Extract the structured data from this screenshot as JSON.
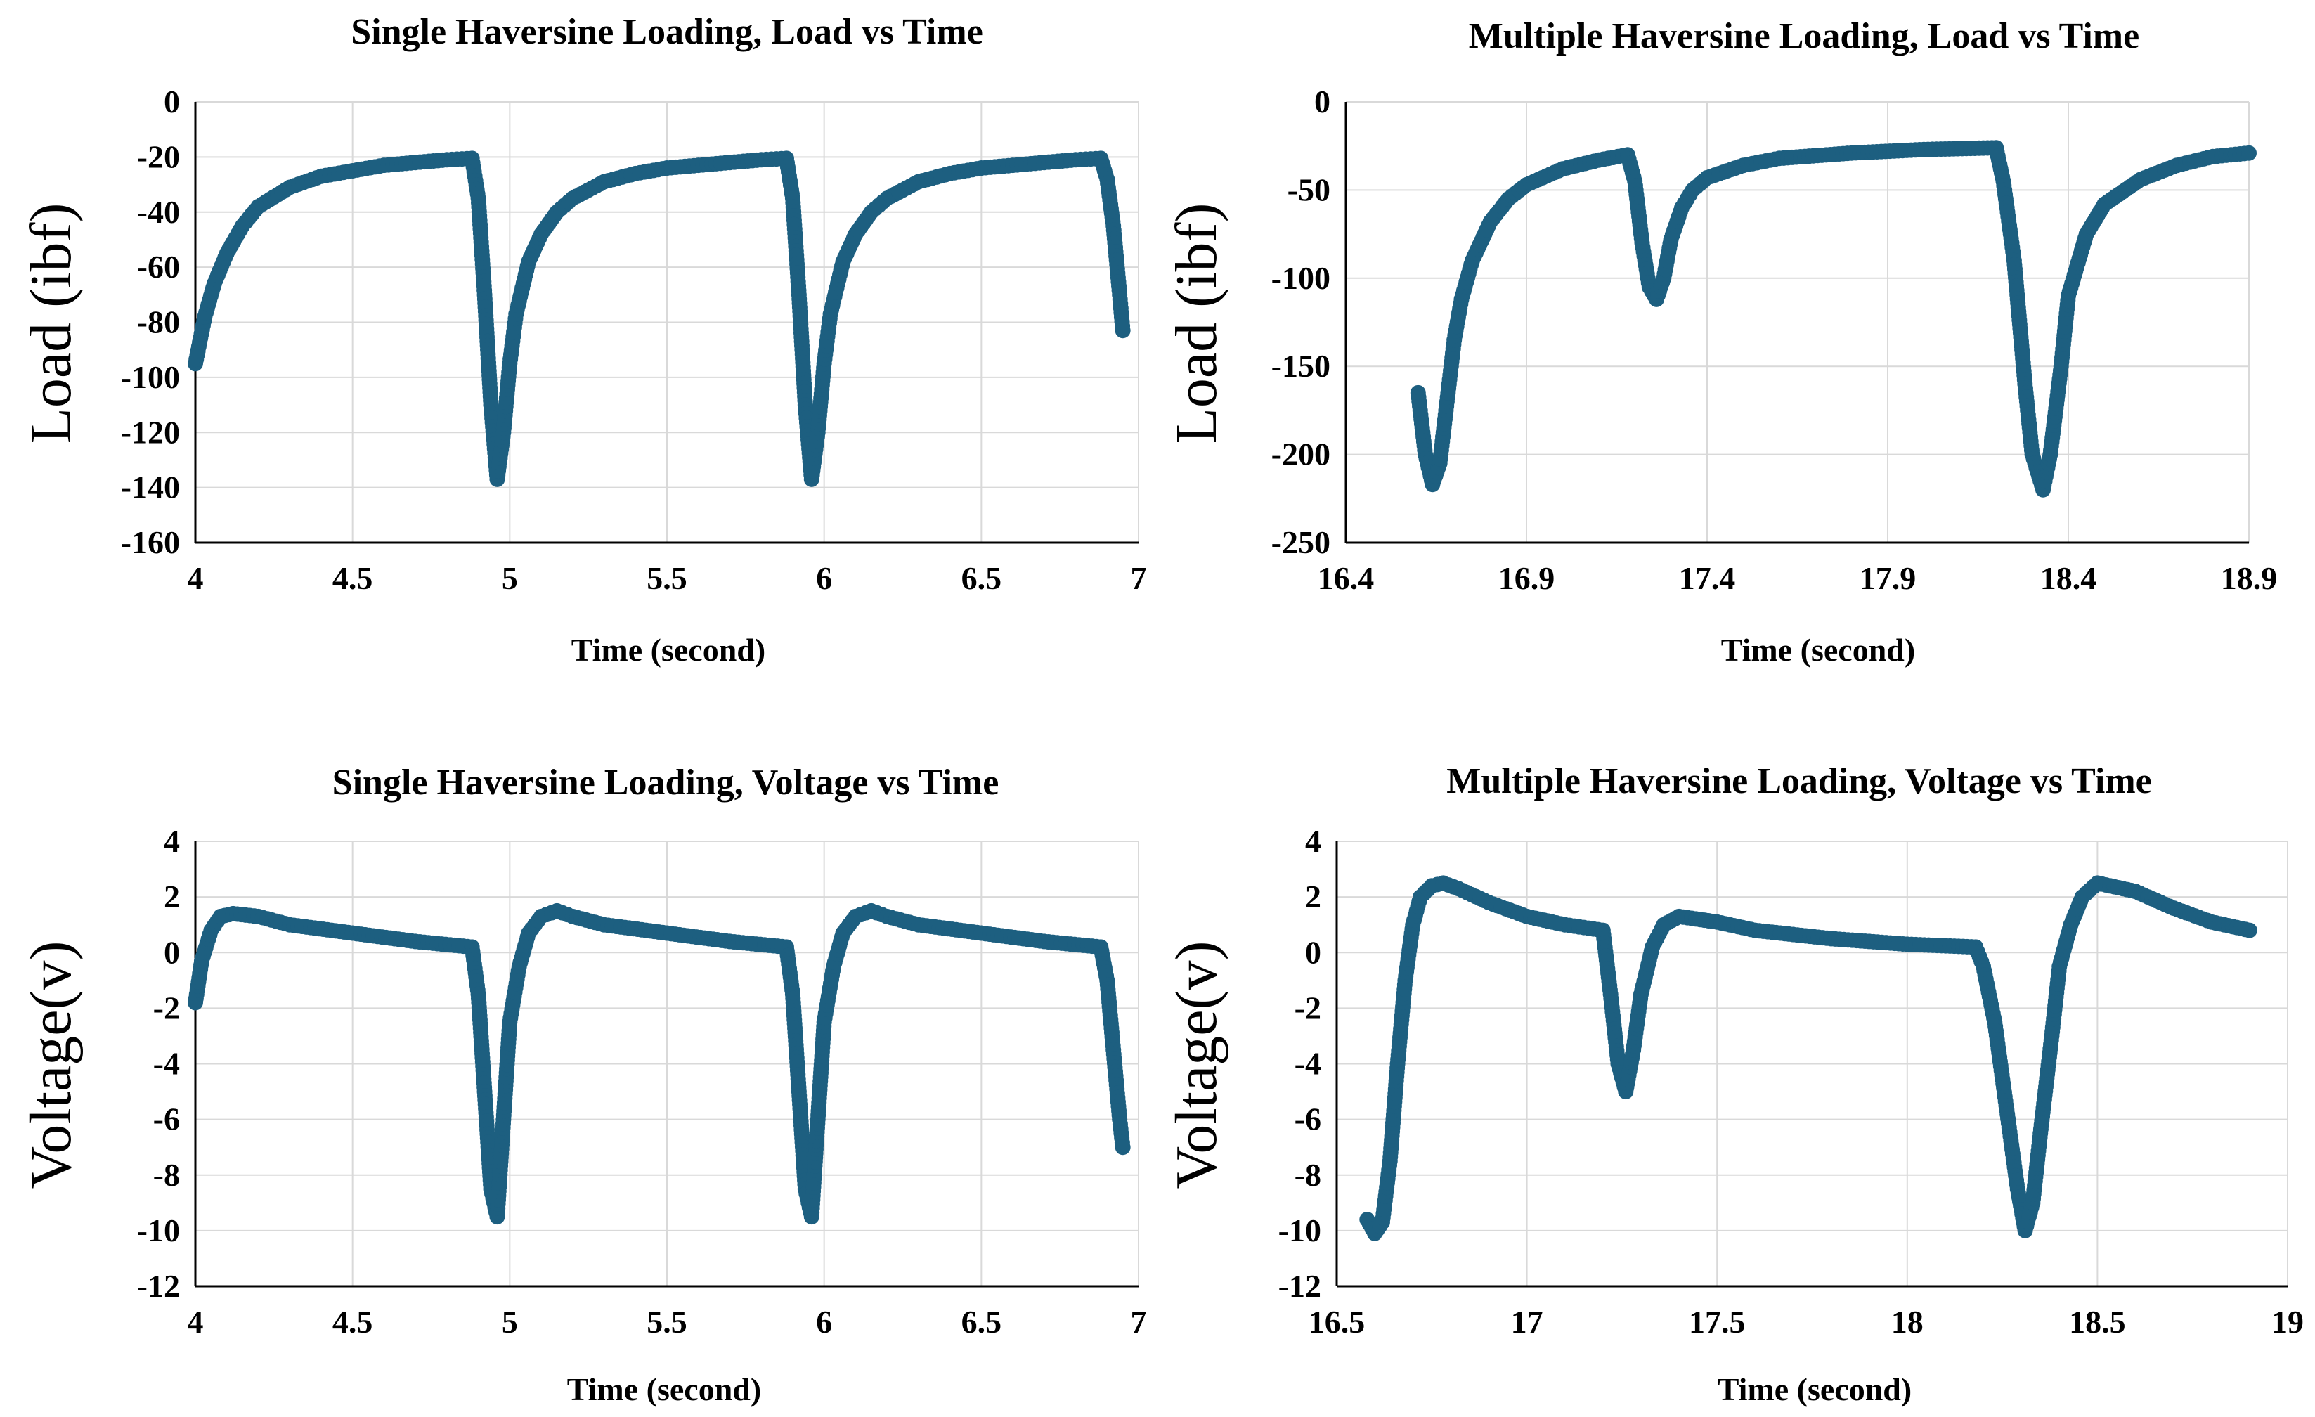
{
  "colors": {
    "marker": "#1d5f80",
    "grid": "#d9d9d9"
  },
  "chart_data": [
    {
      "type": "scatter",
      "title": "Single Haversine Loading, Load vs Time",
      "xlabel": "Time (second)",
      "ylabel": "Load (ibf)",
      "xlim": [
        4,
        7
      ],
      "ylim": [
        -160,
        0
      ],
      "xticks": [
        4,
        4.5,
        5,
        5.5,
        6,
        6.5,
        7
      ],
      "xtick_labels": [
        "4",
        "4.5",
        "5",
        "5.5",
        "6",
        "6.5",
        "7"
      ],
      "yticks": [
        0,
        -20,
        -40,
        -60,
        -80,
        -100,
        -120,
        -140,
        -160
      ],
      "ytick_labels": [
        "0",
        "-20",
        "-40",
        "-60",
        "-80",
        "-100",
        "-120",
        "-140",
        "-160"
      ],
      "grid": true,
      "legend": "none",
      "series": [
        {
          "x": [
            4.0,
            4.03,
            4.06,
            4.1,
            4.15,
            4.2,
            4.3,
            4.4,
            4.5,
            4.6,
            4.7,
            4.8,
            4.88,
            4.9,
            4.92,
            4.94,
            4.96,
            4.98,
            5.0,
            5.02,
            5.06,
            5.1,
            5.15,
            5.2,
            5.3,
            5.4,
            5.5,
            5.6,
            5.7,
            5.8,
            5.88,
            5.9,
            5.92,
            5.94,
            5.96,
            5.98,
            6.0,
            6.02,
            6.06,
            6.1,
            6.15,
            6.2,
            6.3,
            6.4,
            6.5,
            6.6,
            6.7,
            6.8,
            6.88,
            6.9,
            6.92,
            6.94,
            6.95
          ],
          "y": [
            -95,
            -78,
            -66,
            -55,
            -45,
            -38,
            -31,
            -27,
            -25,
            -23,
            -22,
            -21,
            -20.5,
            -35,
            -70,
            -110,
            -137,
            -120,
            -95,
            -77,
            -58,
            -48,
            -40,
            -35,
            -29,
            -26,
            -24,
            -23,
            -22,
            -21,
            -20.5,
            -35,
            -70,
            -110,
            -137,
            -120,
            -95,
            -77,
            -58,
            -48,
            -40,
            -35,
            -29,
            -26,
            -24,
            -23,
            -22,
            -21,
            -20.5,
            -28,
            -45,
            -70,
            -83
          ]
        }
      ]
    },
    {
      "type": "scatter",
      "title": "Multiple Haversine Loading, Load vs Time",
      "xlabel": "Time (second)",
      "ylabel": "Load (ibf)",
      "xlim": [
        16.4,
        18.9
      ],
      "ylim": [
        -250,
        0
      ],
      "xticks": [
        16.4,
        16.9,
        17.4,
        17.9,
        18.4,
        18.9
      ],
      "xtick_labels": [
        "16.4",
        "16.9",
        "17.4",
        "17.9",
        "18.4",
        "18.9"
      ],
      "yticks": [
        0,
        -50,
        -100,
        -150,
        -200,
        -250
      ],
      "ytick_labels": [
        "0",
        "-50",
        "-100",
        "-150",
        "-200",
        "-250"
      ],
      "grid": true,
      "legend": "none",
      "series": [
        {
          "x": [
            16.6,
            16.62,
            16.64,
            16.66,
            16.68,
            16.7,
            16.72,
            16.75,
            16.8,
            16.85,
            16.9,
            17.0,
            17.1,
            17.18,
            17.2,
            17.22,
            17.24,
            17.26,
            17.28,
            17.3,
            17.33,
            17.36,
            17.4,
            17.5,
            17.6,
            17.8,
            18.0,
            18.2,
            18.22,
            18.25,
            18.28,
            18.3,
            18.33,
            18.35,
            18.38,
            18.4,
            18.45,
            18.5,
            18.6,
            18.7,
            18.8,
            18.9
          ],
          "y": [
            -165,
            -200,
            -217,
            -205,
            -170,
            -135,
            -112,
            -90,
            -68,
            -55,
            -47,
            -38,
            -33,
            -30,
            -45,
            -80,
            -105,
            -112,
            -100,
            -78,
            -60,
            -50,
            -43,
            -36,
            -32,
            -29,
            -27,
            -26,
            -45,
            -90,
            -160,
            -200,
            -220,
            -200,
            -150,
            -110,
            -75,
            -58,
            -44,
            -36,
            -31,
            -29
          ]
        }
      ]
    },
    {
      "type": "scatter",
      "title": "Single Haversine Loading, Voltage vs Time",
      "xlabel": "Time (second)",
      "ylabel": "Voltage(v)",
      "xlim": [
        4,
        7
      ],
      "ylim": [
        -12,
        4
      ],
      "xticks": [
        4,
        4.5,
        5,
        5.5,
        6,
        6.5,
        7
      ],
      "xtick_labels": [
        "4",
        "4.5",
        "5",
        "5.5",
        "6",
        "6.5",
        "7"
      ],
      "yticks": [
        4,
        2,
        0,
        -2,
        -4,
        -6,
        -8,
        -10,
        -12
      ],
      "ytick_labels": [
        "4",
        "2",
        "0",
        "-2",
        "-4",
        "-6",
        "-8",
        "-10",
        "-12"
      ],
      "grid": true,
      "legend": "none",
      "series": [
        {
          "x": [
            4.0,
            4.02,
            4.05,
            4.08,
            4.12,
            4.2,
            4.3,
            4.5,
            4.7,
            4.88,
            4.9,
            4.92,
            4.94,
            4.96,
            4.98,
            5.0,
            5.03,
            5.06,
            5.1,
            5.15,
            5.2,
            5.3,
            5.5,
            5.7,
            5.88,
            5.9,
            5.92,
            5.94,
            5.96,
            5.98,
            6.0,
            6.03,
            6.06,
            6.1,
            6.15,
            6.2,
            6.3,
            6.5,
            6.7,
            6.88,
            6.9,
            6.92,
            6.94,
            6.95
          ],
          "y": [
            -1.8,
            -0.3,
            0.8,
            1.3,
            1.4,
            1.3,
            1.0,
            0.7,
            0.4,
            0.2,
            -1.5,
            -5.0,
            -8.5,
            -9.5,
            -6.0,
            -2.5,
            -0.5,
            0.7,
            1.3,
            1.5,
            1.3,
            1.0,
            0.7,
            0.4,
            0.2,
            -1.5,
            -5.0,
            -8.5,
            -9.5,
            -6.0,
            -2.5,
            -0.5,
            0.7,
            1.3,
            1.5,
            1.3,
            1.0,
            0.7,
            0.4,
            0.2,
            -1.0,
            -3.5,
            -6.0,
            -7.0
          ]
        }
      ]
    },
    {
      "type": "scatter",
      "title": "Multiple Haversine Loading, Voltage vs Time",
      "xlabel": "Time (second)",
      "ylabel": "Voltage(v)",
      "xlim": [
        16.5,
        19
      ],
      "ylim": [
        -12,
        4
      ],
      "xticks": [
        16.5,
        17,
        17.5,
        18,
        18.5,
        19
      ],
      "xtick_labels": [
        "16.5",
        "17",
        "17.5",
        "18",
        "18.5",
        "19"
      ],
      "yticks": [
        4,
        2,
        0,
        -2,
        -4,
        -6,
        -8,
        -10,
        -12
      ],
      "ytick_labels": [
        "4",
        "2",
        "0",
        "-2",
        "-4",
        "-6",
        "-8",
        "-10",
        "-12"
      ],
      "grid": true,
      "legend": "none",
      "series": [
        {
          "x": [
            16.58,
            16.6,
            16.62,
            16.64,
            16.66,
            16.68,
            16.7,
            16.72,
            16.75,
            16.78,
            16.82,
            16.9,
            17.0,
            17.1,
            17.15,
            17.2,
            17.22,
            17.24,
            17.26,
            17.28,
            17.3,
            17.33,
            17.36,
            17.4,
            17.5,
            17.6,
            17.8,
            18.0,
            18.18,
            18.2,
            18.23,
            18.26,
            18.29,
            18.31,
            18.33,
            18.35,
            18.38,
            18.4,
            18.43,
            18.46,
            18.5,
            18.6,
            18.7,
            18.8,
            18.9
          ],
          "y": [
            -9.6,
            -10.1,
            -9.7,
            -7.5,
            -4.0,
            -1.0,
            1.0,
            2.0,
            2.4,
            2.5,
            2.3,
            1.8,
            1.3,
            1.0,
            0.9,
            0.8,
            -1.5,
            -4.0,
            -5.0,
            -3.5,
            -1.5,
            0.2,
            1.0,
            1.3,
            1.1,
            0.8,
            0.5,
            0.3,
            0.2,
            -0.5,
            -2.5,
            -5.5,
            -8.5,
            -10.0,
            -9.0,
            -6.5,
            -3.0,
            -0.5,
            1.0,
            2.0,
            2.5,
            2.2,
            1.6,
            1.1,
            0.8
          ]
        }
      ]
    }
  ]
}
